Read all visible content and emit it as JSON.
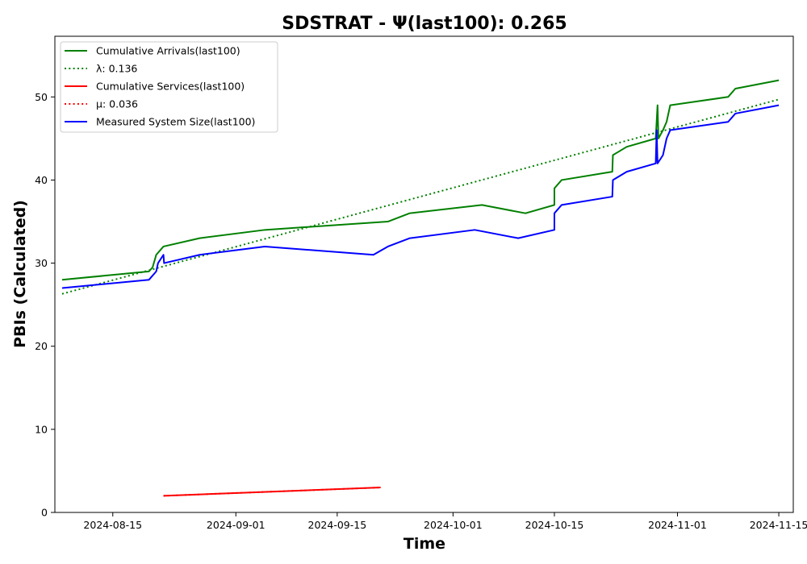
{
  "chart_data": {
    "type": "line",
    "title": "SDSTRAT -  Ψ(last100): 0.265",
    "xlabel": "Time",
    "ylabel": "PBIs (Calculated)",
    "x_type": "date",
    "xlim": [
      "2024-08-07",
      "2024-11-17"
    ],
    "ylim": [
      0,
      57.3
    ],
    "xticks": [
      "2024-08-15",
      "2024-09-01",
      "2024-09-15",
      "2024-10-01",
      "2024-10-15",
      "2024-11-01",
      "2024-11-15"
    ],
    "yticks": [
      0,
      10,
      20,
      30,
      40,
      50
    ],
    "grid": false,
    "legend_position": "upper-left",
    "series": [
      {
        "name": "Cumulative Arrivals(last100)",
        "color": "#008000",
        "style": "solid",
        "points": [
          [
            "2024-08-08",
            28
          ],
          [
            "2024-08-20",
            29
          ],
          [
            "2024-08-20T12:00",
            29.5
          ],
          [
            "2024-08-21",
            31
          ],
          [
            "2024-08-22",
            32
          ],
          [
            "2024-08-27",
            33
          ],
          [
            "2024-09-05",
            34
          ],
          [
            "2024-09-22",
            35
          ],
          [
            "2024-09-25",
            36
          ],
          [
            "2024-10-05",
            37
          ],
          [
            "2024-10-11",
            36
          ],
          [
            "2024-10-15",
            37
          ],
          [
            "2024-10-15T00:01",
            39
          ],
          [
            "2024-10-16",
            40
          ],
          [
            "2024-10-23",
            41
          ],
          [
            "2024-10-23T02:00",
            43
          ],
          [
            "2024-10-25",
            44
          ],
          [
            "2024-10-29",
            45
          ],
          [
            "2024-10-29T06:00",
            49
          ],
          [
            "2024-10-29T09:00",
            45
          ],
          [
            "2024-10-30",
            46
          ],
          [
            "2024-10-30T12:00",
            47
          ],
          [
            "2024-10-31",
            49
          ],
          [
            "2024-11-08",
            50
          ],
          [
            "2024-11-09",
            51
          ],
          [
            "2024-11-15",
            52
          ]
        ]
      },
      {
        "name": "λ: 0.136",
        "color": "#008000",
        "style": "dotted",
        "points": [
          [
            "2024-08-08",
            26.3
          ],
          [
            "2024-11-15",
            49.7
          ]
        ]
      },
      {
        "name": "Cumulative Services(last100)",
        "color": "#ff0000",
        "style": "solid",
        "points": [
          [
            "2024-08-22",
            2
          ],
          [
            "2024-09-21",
            3
          ]
        ]
      },
      {
        "name": "μ: 0.036",
        "color": "#ff0000",
        "style": "dotted",
        "points": [
          [
            "2024-08-22",
            2
          ],
          [
            "2024-09-21",
            3
          ]
        ]
      },
      {
        "name": "Measured System Size(last100)",
        "color": "#0000ff",
        "style": "solid",
        "points": [
          [
            "2024-08-08",
            27
          ],
          [
            "2024-08-20",
            28
          ],
          [
            "2024-08-21",
            29
          ],
          [
            "2024-08-21T06:00",
            30
          ],
          [
            "2024-08-22",
            31
          ],
          [
            "2024-08-22T02:00",
            30
          ],
          [
            "2024-08-27",
            31
          ],
          [
            "2024-09-05",
            32
          ],
          [
            "2024-09-20",
            31
          ],
          [
            "2024-09-22",
            32
          ],
          [
            "2024-09-25",
            33
          ],
          [
            "2024-10-04",
            34
          ],
          [
            "2024-10-10",
            33
          ],
          [
            "2024-10-15",
            34
          ],
          [
            "2024-10-15T00:01",
            36
          ],
          [
            "2024-10-16",
            37
          ],
          [
            "2024-10-23",
            38
          ],
          [
            "2024-10-23T02:00",
            40
          ],
          [
            "2024-10-25",
            41
          ],
          [
            "2024-10-29",
            42
          ],
          [
            "2024-10-29T03:00",
            46
          ],
          [
            "2024-10-29T06:00",
            42
          ],
          [
            "2024-10-30",
            43
          ],
          [
            "2024-10-30T12:00",
            45
          ],
          [
            "2024-10-31",
            46
          ],
          [
            "2024-11-08",
            47
          ],
          [
            "2024-11-09",
            48
          ],
          [
            "2024-11-15",
            49
          ]
        ]
      }
    ]
  }
}
